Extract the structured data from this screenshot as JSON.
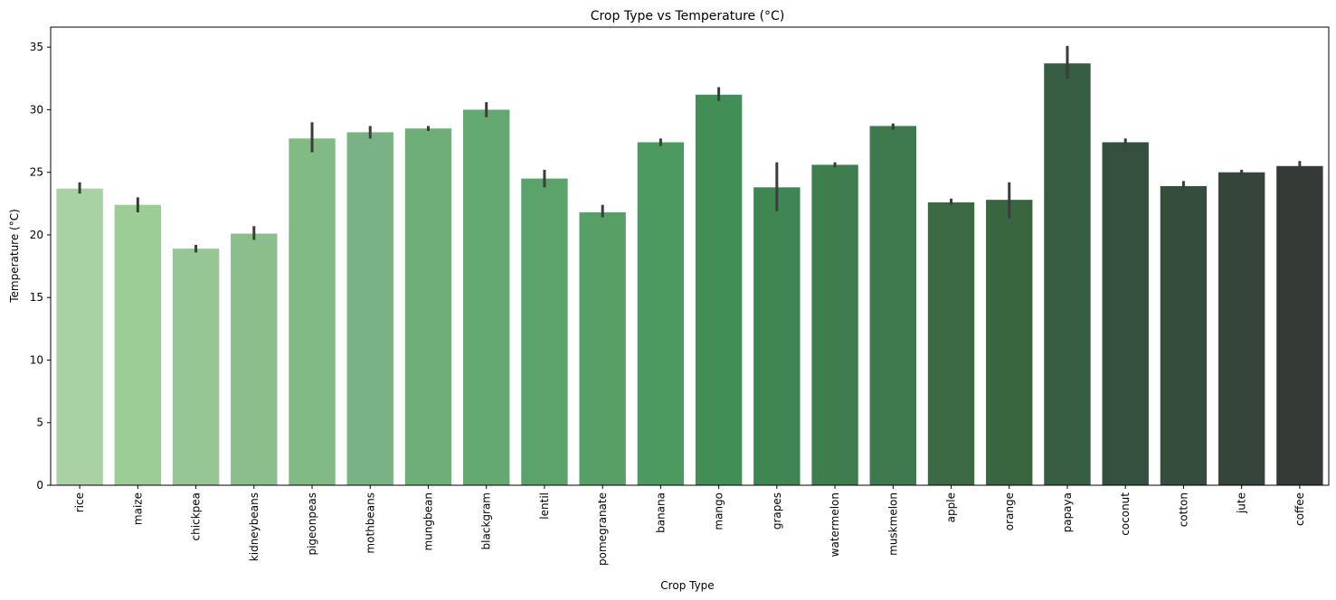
{
  "chart_data": {
    "type": "bar",
    "title": "Crop Type vs Temperature (°C)",
    "xlabel": "Crop Type",
    "ylabel": "Temperature (°C)",
    "ylim": [
      0,
      36.6
    ],
    "yticks": [
      0,
      5,
      10,
      15,
      20,
      25,
      30,
      35
    ],
    "categories": [
      "rice",
      "maize",
      "chickpea",
      "kidneybeans",
      "pigeonpeas",
      "mothbeans",
      "mungbean",
      "blackgram",
      "lentil",
      "pomegranate",
      "banana",
      "mango",
      "grapes",
      "watermelon",
      "muskmelon",
      "apple",
      "orange",
      "papaya",
      "coconut",
      "cotton",
      "jute",
      "coffee"
    ],
    "values": [
      23.7,
      22.4,
      18.9,
      20.1,
      27.7,
      28.2,
      28.5,
      30.0,
      24.5,
      21.8,
      27.4,
      31.2,
      23.8,
      25.6,
      28.7,
      22.6,
      22.8,
      33.7,
      27.4,
      23.9,
      25.0,
      25.5
    ],
    "ci_low": [
      23.3,
      21.8,
      18.6,
      19.6,
      26.6,
      27.7,
      28.3,
      29.4,
      23.8,
      21.4,
      27.1,
      30.7,
      21.9,
      25.4,
      28.4,
      22.4,
      21.3,
      32.5,
      27.2,
      23.7,
      24.7,
      25.3
    ],
    "ci_high": [
      24.2,
      23.0,
      19.2,
      20.7,
      29.0,
      28.7,
      28.7,
      30.6,
      25.2,
      22.4,
      27.7,
      31.8,
      25.8,
      25.8,
      28.9,
      22.9,
      24.2,
      35.1,
      27.7,
      24.3,
      25.2,
      25.9
    ],
    "colors": [
      "#a8d2a3",
      "#9ccd97",
      "#96c693",
      "#8bbe8b",
      "#81ba83",
      "#7ab383",
      "#6dae79",
      "#63a870",
      "#5aa36b",
      "#56a065",
      "#4c9a5f",
      "#418e56",
      "#3f8752",
      "#3e7d4e",
      "#3e7a4e",
      "#3b6a45",
      "#39663f",
      "#365c41",
      "#334f3d",
      "#344d3d",
      "#354539",
      "#343b36"
    ],
    "errorbar_color": "#3c3c3c",
    "legend": "none",
    "grid": false
  }
}
